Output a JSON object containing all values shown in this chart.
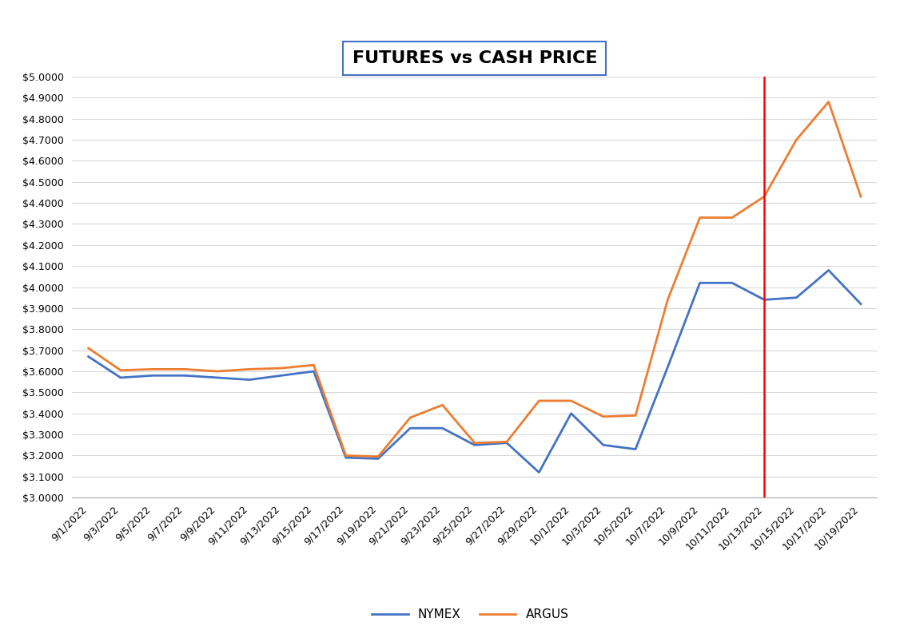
{
  "title": "FUTURES vs CASH PRICE",
  "dates": [
    "9/1/2022",
    "9/3/2022",
    "9/5/2022",
    "9/7/2022",
    "9/9/2022",
    "9/11/2022",
    "9/13/2022",
    "9/15/2022",
    "9/17/2022",
    "9/19/2022",
    "9/21/2022",
    "9/23/2022",
    "9/25/2022",
    "9/27/2022",
    "9/29/2022",
    "10/1/2022",
    "10/3/2022",
    "10/5/2022",
    "10/7/2022",
    "10/9/2022",
    "10/11/2022",
    "10/13/2022",
    "10/15/2022",
    "10/17/2022",
    "10/19/2022"
  ],
  "nymex_values": [
    3.67,
    3.57,
    3.58,
    3.58,
    3.57,
    3.56,
    3.58,
    3.6,
    3.19,
    3.185,
    3.33,
    3.33,
    3.25,
    3.26,
    3.12,
    3.4,
    3.25,
    3.23,
    3.62,
    4.02,
    4.02,
    3.94,
    3.95,
    4.08,
    3.92
  ],
  "argus_values": [
    3.71,
    3.605,
    3.61,
    3.61,
    3.6,
    3.61,
    3.615,
    3.63,
    3.2,
    3.195,
    3.38,
    3.44,
    3.26,
    3.265,
    3.46,
    3.46,
    3.385,
    3.39,
    3.94,
    4.33,
    4.33,
    4.43,
    4.7,
    4.88,
    4.43
  ],
  "vline_index": 21,
  "nymex_color": "#4472C4",
  "argus_color": "#ED7D31",
  "vline_color": "#FF0000",
  "ylim": [
    3.0,
    5.0
  ],
  "ytick_step": 0.1,
  "legend_labels": [
    "NYMEX",
    "ARGUS"
  ],
  "background_color": "#FFFFFF",
  "grid_color": "#D9D9D9",
  "line_width": 2.0,
  "title_fontsize": 16,
  "tick_fontsize": 9,
  "legend_fontsize": 11
}
